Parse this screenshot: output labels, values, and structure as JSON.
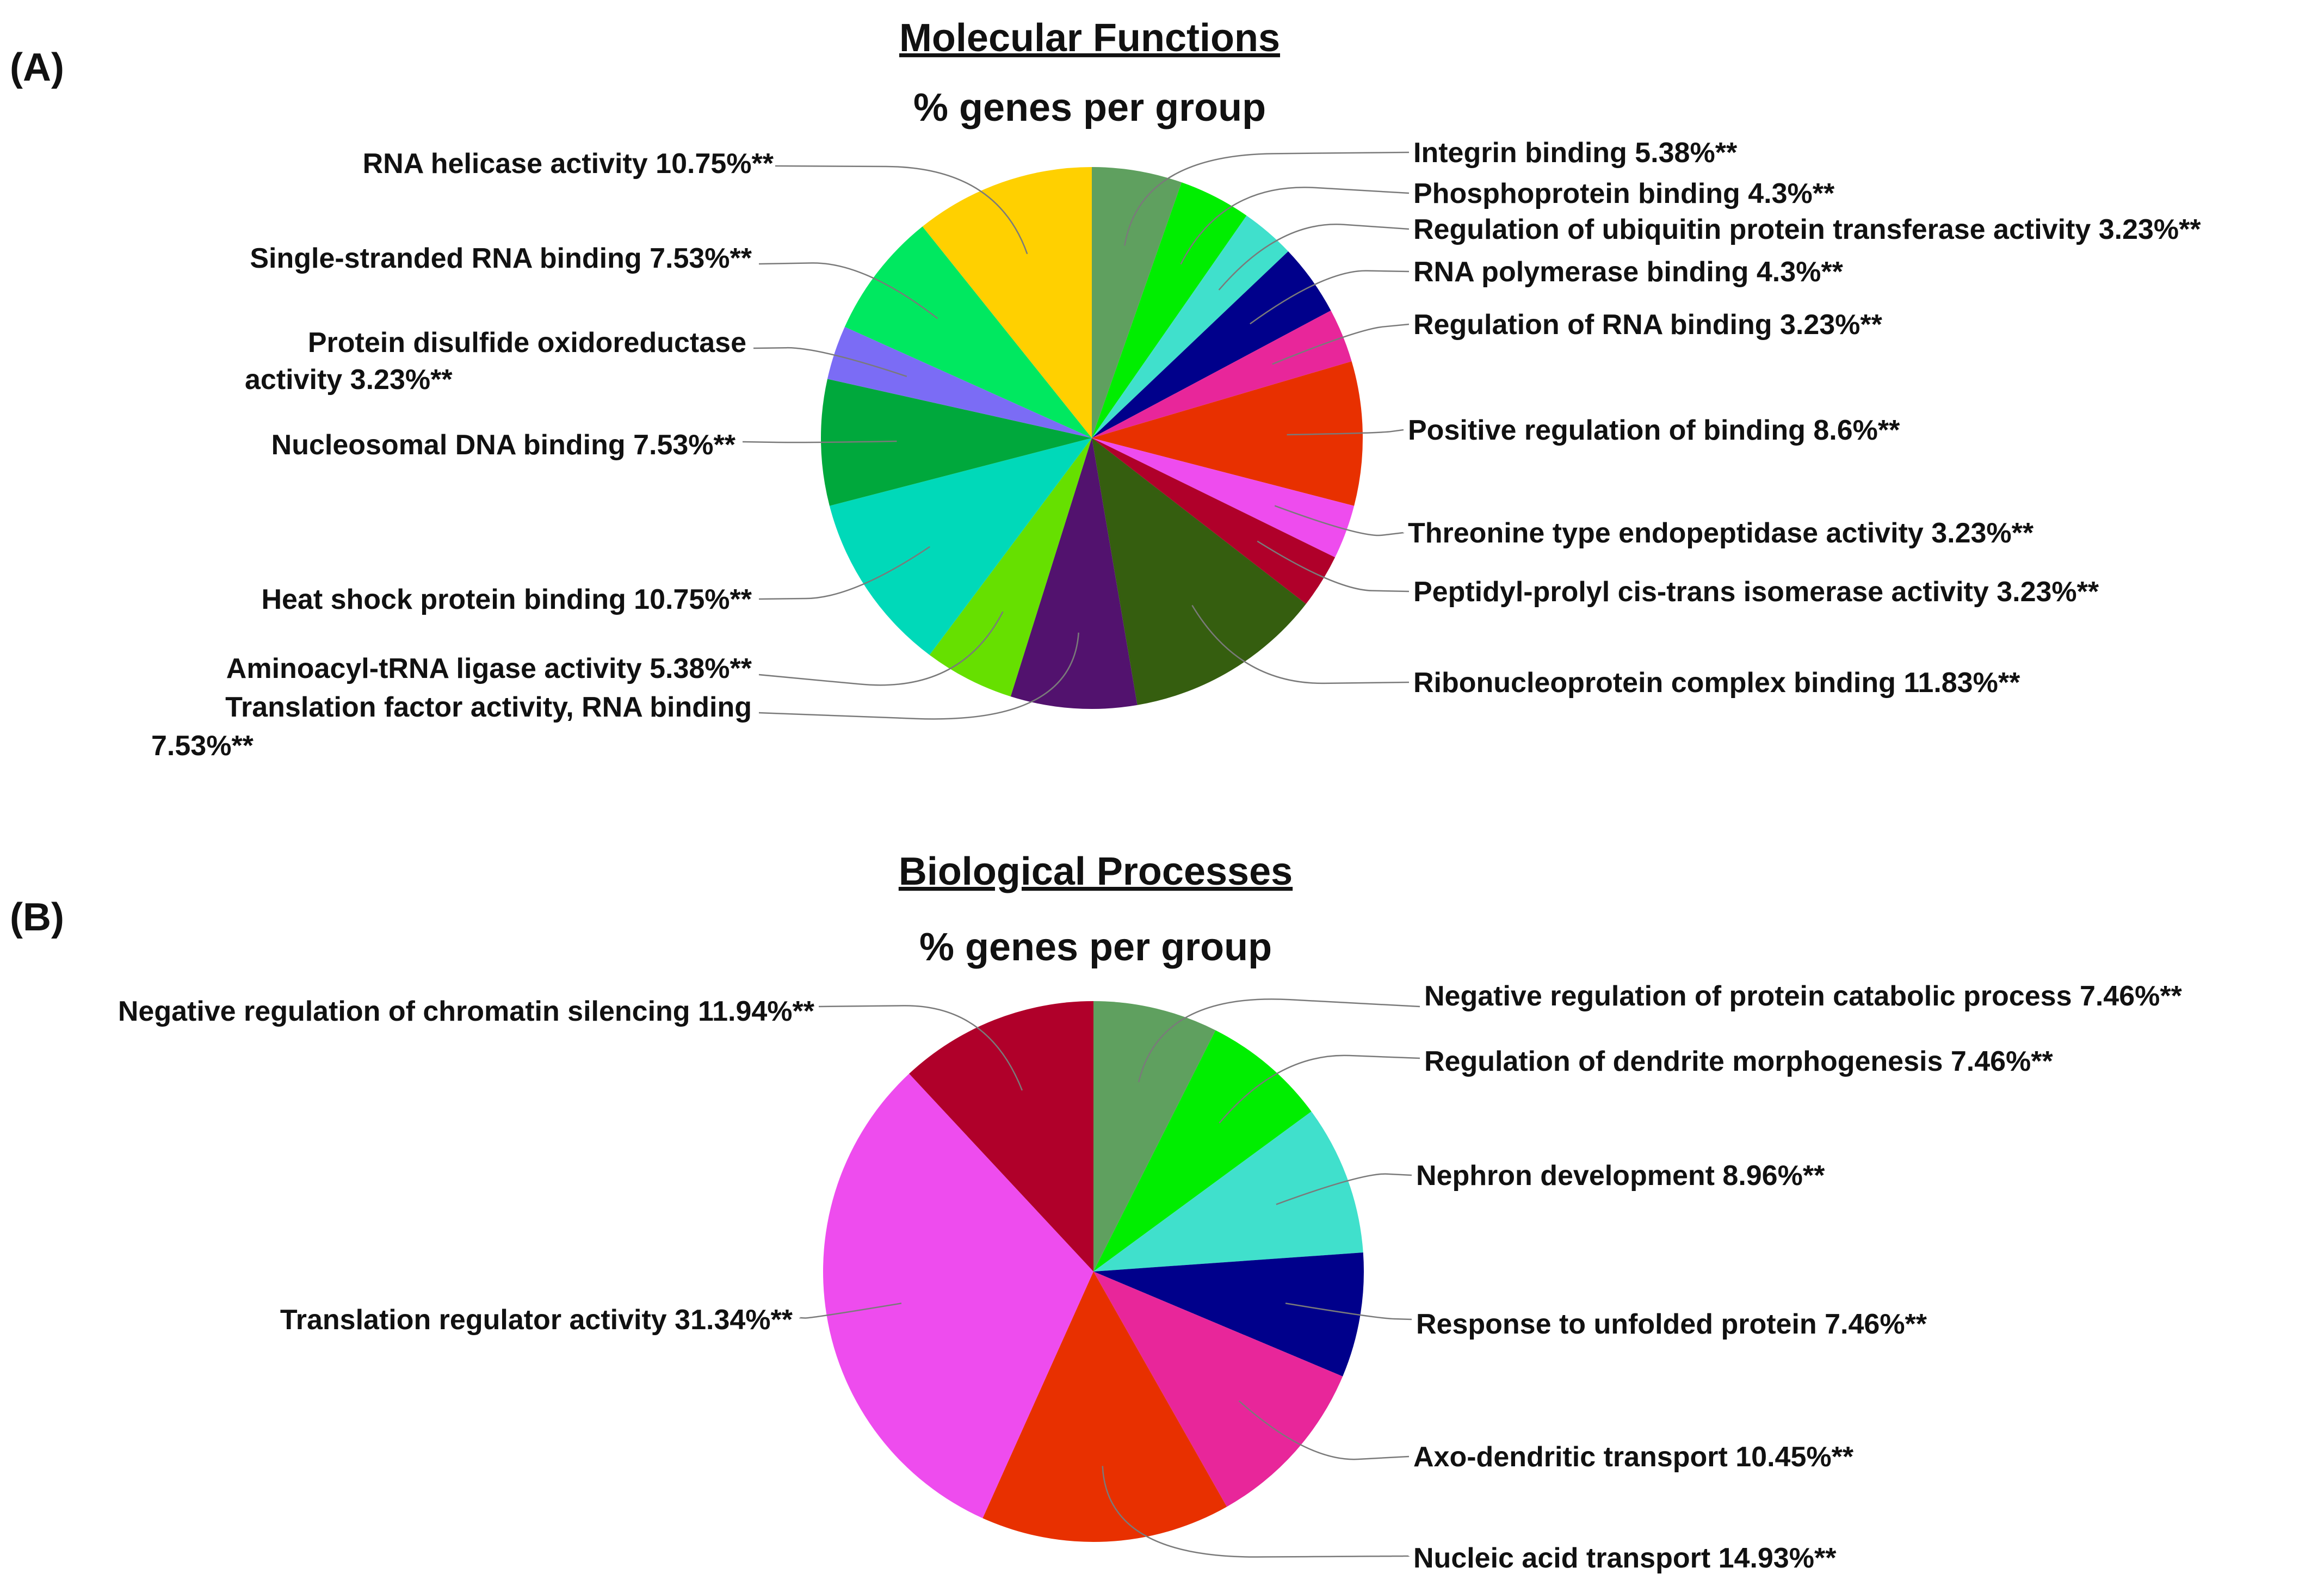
{
  "chart_data": [
    {
      "type": "pie",
      "panel_label": "(A)",
      "title": "Molecular Functions",
      "subtitle": "% genes per group",
      "legend": "none",
      "slices": [
        {
          "label": "Integrin binding  5.38%**",
          "value": 5.38,
          "color": "#5fa05f"
        },
        {
          "label": "Phosphoprotein  binding  4.3%**",
          "value": 4.3,
          "color": "#00ee00"
        },
        {
          "label": "Regulation of ubiquitin  protein transferase activity  3.23%**",
          "value": 3.23,
          "color": "#40e0cc"
        },
        {
          "label": "RNA  polymerase binding  4.3%**",
          "value": 4.3,
          "color": "#00008b"
        },
        {
          "label": "Regulation  of RNA  binding  3.23%**",
          "value": 3.23,
          "color": "#e8269a"
        },
        {
          "label": "Positive regulation  of binding  8.6%**",
          "value": 8.6,
          "color": "#e83000"
        },
        {
          "label": "Threonine type endopeptidase activity  3.23%**",
          "value": 3.23,
          "color": "#ee4cee"
        },
        {
          "label": "Peptidyl-prolyl  cis-trans isomerase activity  3.23%**",
          "value": 3.23,
          "color": "#b0002a"
        },
        {
          "label": "Ribonucleoprotein  complex binding  11.83%**",
          "value": 11.83,
          "color": "#355e0f"
        },
        {
          "label": "Translation factor activity,  RNA  binding 7.53%**",
          "value": 7.53,
          "color": "#52126e"
        },
        {
          "label": "Aminoacyl-tRNA  ligase activity  5.38%**",
          "value": 5.38,
          "color": "#66e000"
        },
        {
          "label": "Heat shock protein binding  10.75%**",
          "value": 10.75,
          "color": "#00d9b9"
        },
        {
          "label": "Nucleosomal DNA  binding  7.53%**",
          "value": 7.53,
          "color": "#00a83c"
        },
        {
          "label": "Protein disulfide oxidoreductase activity  3.23%**",
          "value": 3.23,
          "color": "#7b6cf5"
        },
        {
          "label": "Single-stranded  RNA  binding  7.53%**",
          "value": 7.53,
          "color": "#00e860"
        },
        {
          "label": "RNA  helicase activity  10.75%**",
          "value": 10.75,
          "color": "#ffd000"
        }
      ]
    },
    {
      "type": "pie",
      "panel_label": "(B)",
      "title": "Biological Processes",
      "subtitle": "% genes per group",
      "legend": "none",
      "slices": [
        {
          "label": "Negative regulation  of protein catabolic process  7.46%**",
          "value": 7.46,
          "color": "#5fa05f"
        },
        {
          "label": "Regulation  of dendrite morphogenesis  7.46%**",
          "value": 7.46,
          "color": "#00ee00"
        },
        {
          "label": "Nephron  development  8.96%**",
          "value": 8.96,
          "color": "#40e0cc"
        },
        {
          "label": "Response to unfolded  protein  7.46%**",
          "value": 7.46,
          "color": "#00008b"
        },
        {
          "label": "Axo-dendritic  transport  10.45%**",
          "value": 10.45,
          "color": "#e8269a"
        },
        {
          "label": "Nucleic acid transport  14.93%**",
          "value": 14.93,
          "color": "#e83000"
        },
        {
          "label": "Translation regulator activity  31.34%**",
          "value": 31.34,
          "color": "#ee4cee"
        },
        {
          "label": "Negative regulation  of chromatin silencing  11.94%**",
          "value": 11.94,
          "color": "#b0002a"
        }
      ]
    }
  ]
}
